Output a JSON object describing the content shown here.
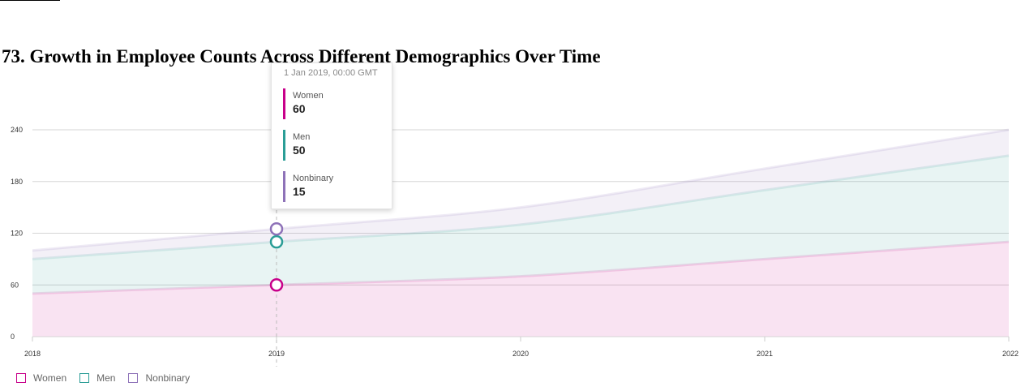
{
  "title": "73. Growth in Employee Counts Across Different Demographics Over Time",
  "chart_data": {
    "type": "area",
    "stacked": true,
    "x": [
      "2018",
      "2019",
      "2020",
      "2021",
      "2022"
    ],
    "ylim": [
      0,
      240
    ],
    "yticks": [
      "0",
      "60",
      "120",
      "180",
      "240"
    ],
    "grid": true,
    "legend_position": "bottom-left",
    "series": [
      {
        "name": "Women",
        "values": [
          50,
          60,
          70,
          90,
          110
        ],
        "color": "#c8008a"
      },
      {
        "name": "Men",
        "values": [
          40,
          50,
          60,
          80,
          100
        ],
        "color": "#2a9d96"
      },
      {
        "name": "Nonbinary",
        "values": [
          10,
          15,
          20,
          25,
          30
        ],
        "color": "#8e72b8"
      }
    ]
  },
  "tooltip": {
    "date": "1 Jan 2019, 00:00 GMT",
    "index": 1,
    "rows": [
      {
        "name": "Women",
        "value": "60",
        "color": "#c8008a"
      },
      {
        "name": "Men",
        "value": "50",
        "color": "#2a9d96"
      },
      {
        "name": "Nonbinary",
        "value": "15",
        "color": "#8e72b8"
      }
    ]
  }
}
